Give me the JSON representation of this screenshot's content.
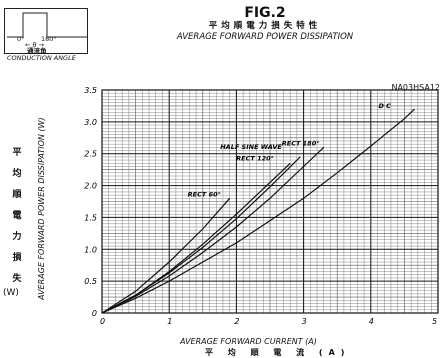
{
  "inset": {
    "angle_start": "0°",
    "angle_end": "180°",
    "theta_label": "← θ →",
    "jp_label": "通流角",
    "en_label": "CONDUCTION ANGLE"
  },
  "header": {
    "fig": "FIG.2",
    "jp_title": "平均順電力損失特性",
    "en_title": "AVERAGE FORWARD POWER DISSIPATION",
    "part_number": "NA03HSA12"
  },
  "left_labels": {
    "jp_chars": [
      "平",
      "均",
      "順",
      "電",
      "力",
      "損",
      "失"
    ],
    "unit": "(W)"
  },
  "chart_data": {
    "type": "line",
    "xlabel": "AVERAGE FORWARD CURRENT (A)",
    "xlabel_jp": "平 均 順 電 流 (A)",
    "ylabel": "AVERAGE FORWARD POWER DISSIPATION (W)",
    "xlim": [
      0,
      5
    ],
    "ylim": [
      0,
      3.5
    ],
    "x_ticks": [
      "0",
      "1",
      "2",
      "3",
      "4",
      "5"
    ],
    "y_ticks": [
      "0",
      "0.5",
      "1.0",
      "1.5",
      "2.0",
      "2.5",
      "3.0",
      "3.5"
    ],
    "grid": true,
    "series": [
      {
        "name": "D C",
        "x": [
          0,
          0.5,
          1,
          1.5,
          2,
          2.5,
          3,
          3.5,
          4,
          4.5,
          4.65
        ],
        "y": [
          0,
          0.23,
          0.5,
          0.8,
          1.1,
          1.45,
          1.8,
          2.2,
          2.62,
          3.05,
          3.2
        ]
      },
      {
        "name": "RECT 180°",
        "x": [
          0,
          0.5,
          1,
          1.5,
          2,
          2.5,
          3,
          3.3
        ],
        "y": [
          0,
          0.26,
          0.58,
          0.95,
          1.35,
          1.8,
          2.3,
          2.6
        ]
      },
      {
        "name": "HALF SINE WAVE",
        "x": [
          0,
          0.5,
          1,
          1.5,
          2,
          2.5,
          2.95
        ],
        "y": [
          0,
          0.28,
          0.63,
          1.03,
          1.48,
          1.98,
          2.45
        ]
      },
      {
        "name": "RECT 120°",
        "x": [
          0,
          0.5,
          1,
          1.5,
          2,
          2.5,
          2.8
        ],
        "y": [
          0,
          0.28,
          0.65,
          1.08,
          1.55,
          2.05,
          2.35
        ]
      },
      {
        "name": "RECT 60°",
        "x": [
          0,
          0.5,
          1,
          1.5,
          1.9
        ],
        "y": [
          0,
          0.34,
          0.8,
          1.32,
          1.8
        ]
      }
    ]
  }
}
